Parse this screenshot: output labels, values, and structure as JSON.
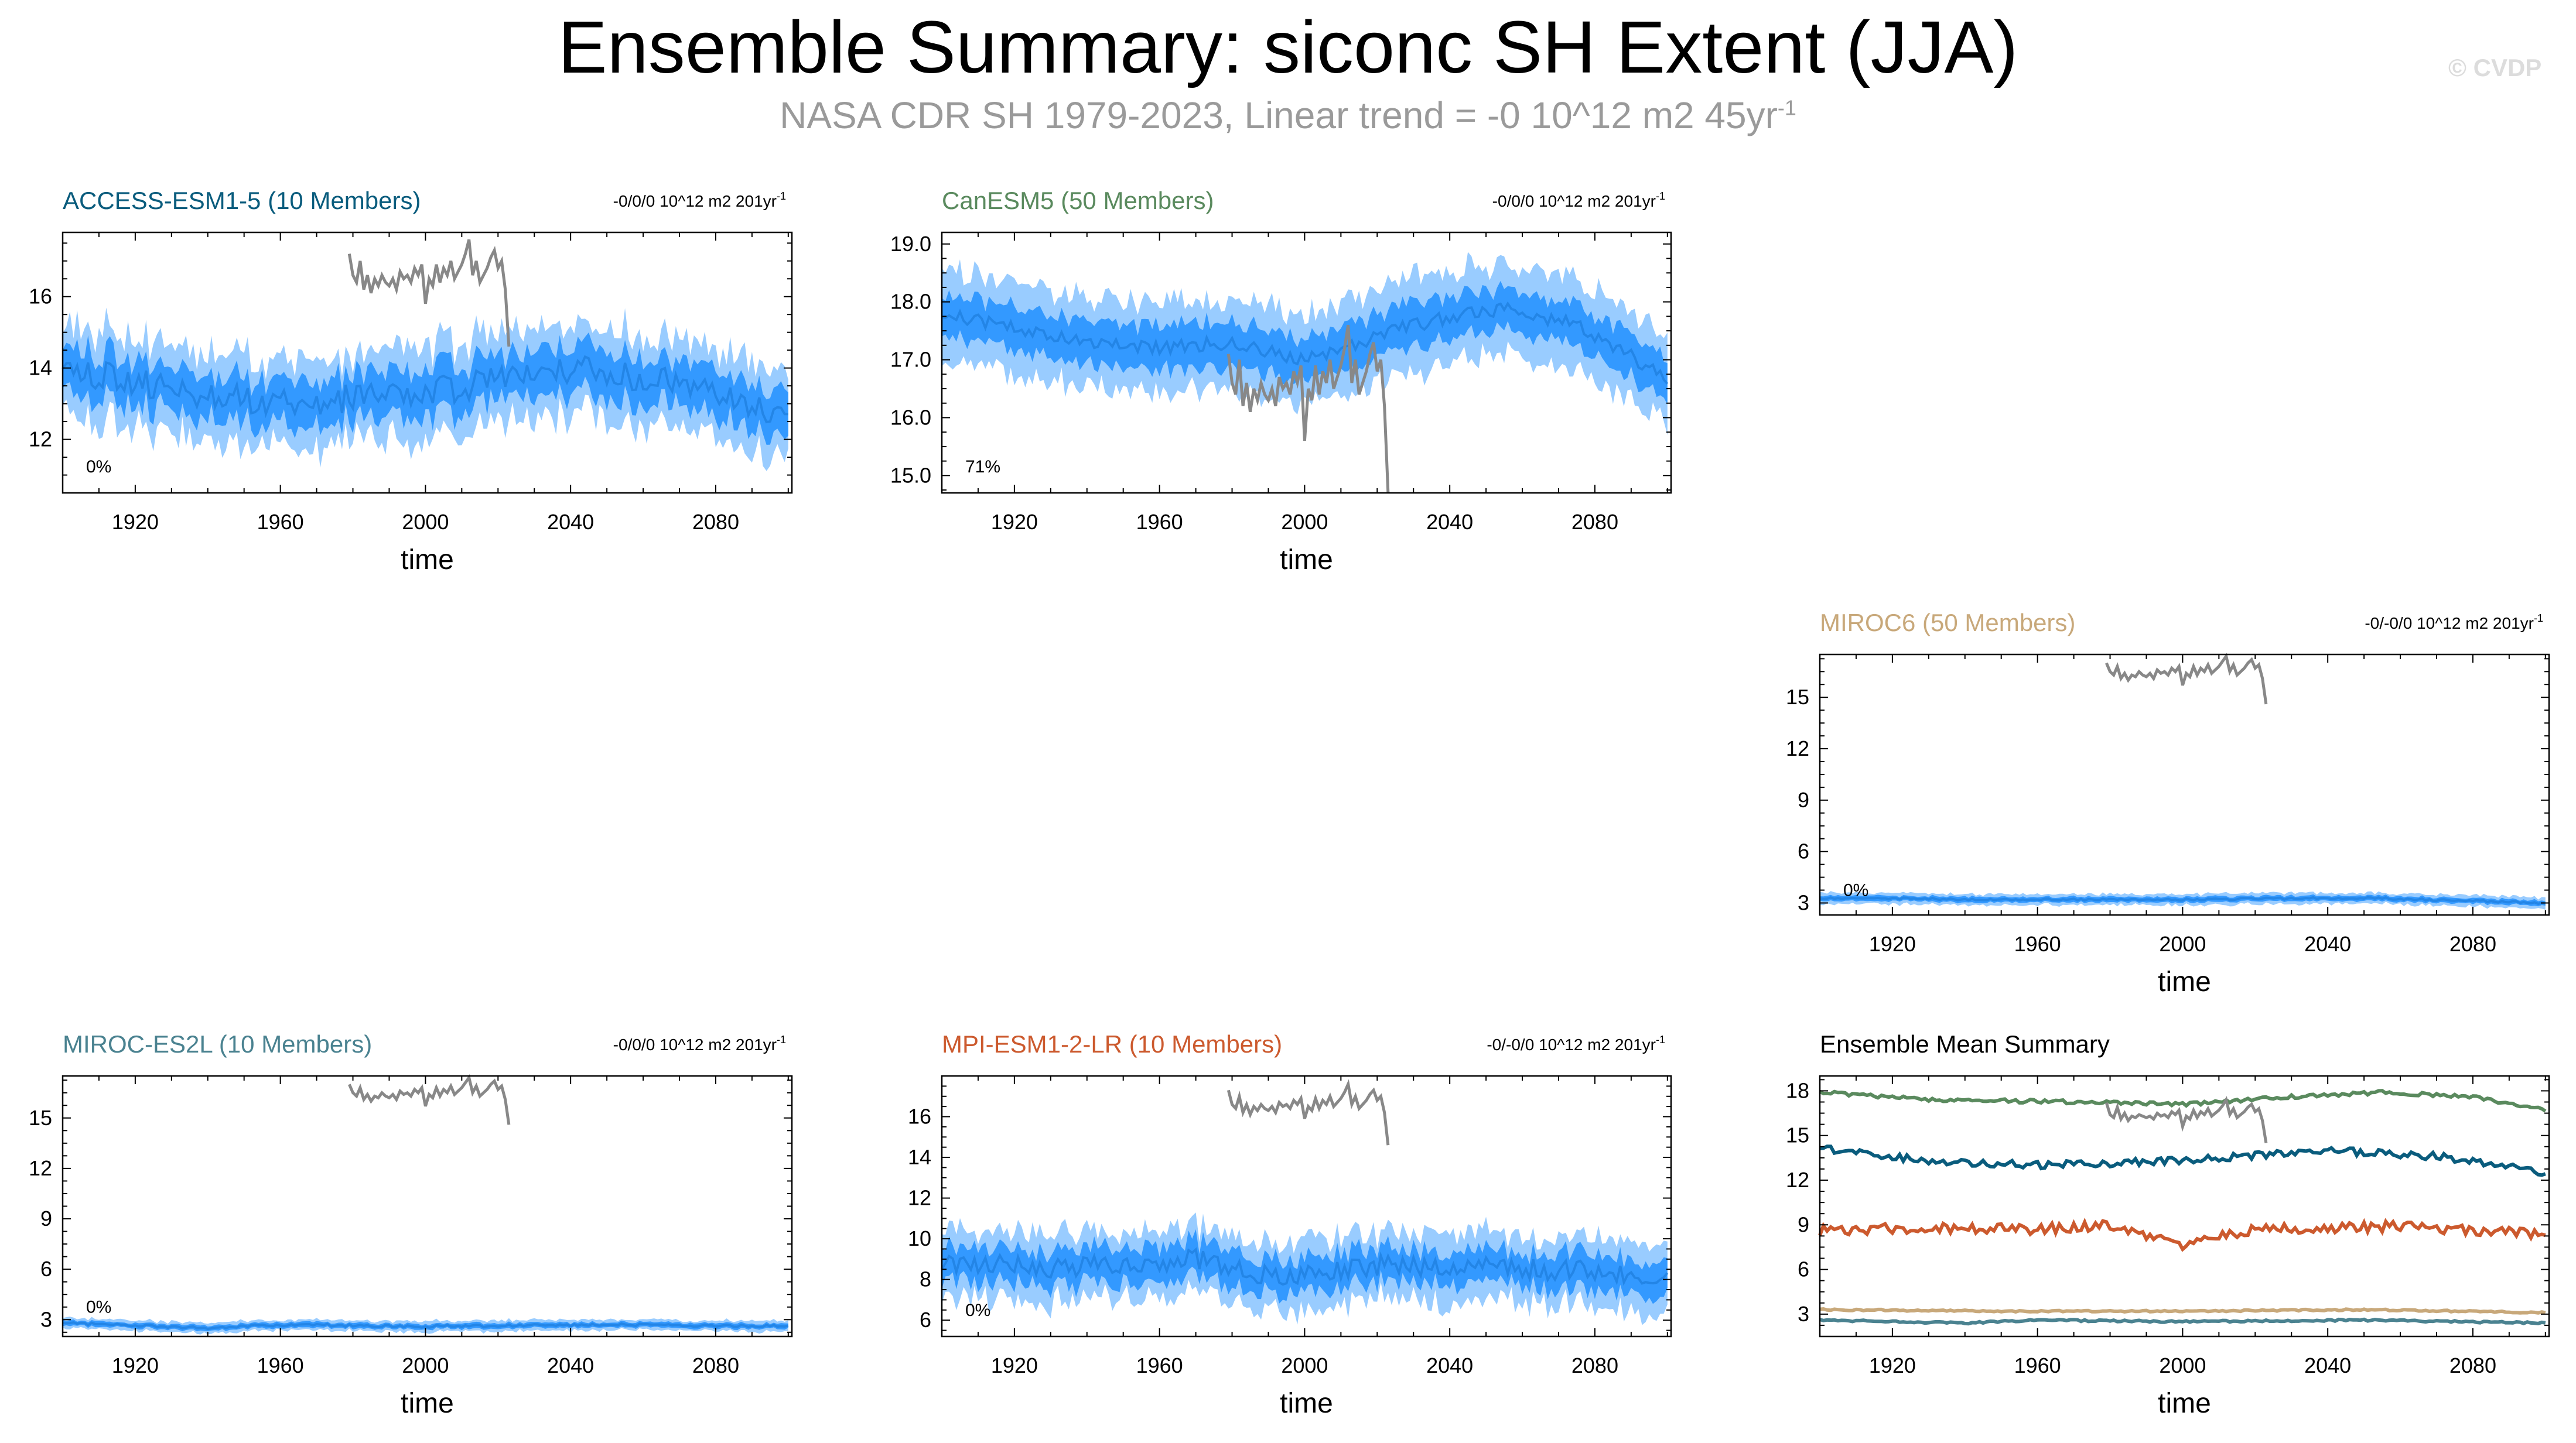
{
  "title": "Ensemble Summary: siconc SH Extent (JJA)",
  "subtitle_main": "NASA CDR SH 1979-2023, Linear trend = -0 10^12 m2 45yr",
  "subtitle_sup": "-1",
  "credit": "© CVDP",
  "colors": {
    "spread_light": "#99ccff",
    "spread_mid": "#3399ff",
    "mean_line": "#1f7fe0",
    "obs": "#888888",
    "ACCESS-ESM1-5": "#0a5c7d",
    "CanESM5": "#5a8a5e",
    "MIROC6": "#c8a87a",
    "MIROC-ES2L": "#4a8290",
    "MPI-ESM1-2-LR": "#cc5a2e"
  },
  "chart_data": [
    {
      "type": "area",
      "id": "access",
      "title": "ACCESS-ESM1-5 (10 Members)",
      "trend_label": "-0/0/0 10^12 m2 201yr",
      "trend_sup": "-1",
      "pct_label": "0%",
      "xlabel": "time",
      "xlim": [
        1900,
        2101
      ],
      "ylim": [
        10.5,
        17.8
      ],
      "xticks": [
        "1920",
        "1960",
        "2000",
        "2040",
        "2080"
      ],
      "yticks": [
        "12",
        "14",
        "16"
      ],
      "mean_profile": [
        [
          1900,
          14.0
        ],
        [
          1930,
          13.4
        ],
        [
          1960,
          13.0
        ],
        [
          2000,
          13.3
        ],
        [
          2040,
          14.0
        ],
        [
          2070,
          13.6
        ],
        [
          2100,
          12.6
        ]
      ],
      "noise": 0.4,
      "inner": 0.6,
      "outer": 1.2,
      "obs_years": [
        1979,
        2023
      ],
      "obs_values": [
        17.2,
        16.6,
        16.4,
        17.0,
        16.2,
        16.6,
        16.1,
        16.5,
        16.3,
        16.6,
        16.4,
        16.3,
        16.5,
        16.2,
        16.7,
        16.5,
        16.6,
        16.4,
        16.8,
        16.6,
        16.9,
        15.8,
        16.5,
        16.3,
        16.9,
        16.4,
        16.8,
        16.6,
        17.0,
        16.5,
        16.7,
        16.9,
        17.2,
        17.6,
        16.6,
        17.0,
        16.4,
        16.6,
        16.8,
        17.1,
        17.3,
        16.8,
        17.0,
        16.2,
        14.6
      ]
    },
    {
      "type": "area",
      "id": "canesm",
      "title": "CanESM5 (50 Members)",
      "trend_label": "-0/0/0 10^12 m2 201yr",
      "trend_sup": "-1",
      "pct_label": "71%",
      "xlabel": "time",
      "xlim": [
        1900,
        2101
      ],
      "ylim": [
        14.7,
        19.2
      ],
      "xticks": [
        "1920",
        "1960",
        "2000",
        "2040",
        "2080"
      ],
      "yticks": [
        "15.0",
        "16.0",
        "17.0",
        "18.0",
        "19.0"
      ],
      "mean_profile": [
        [
          1900,
          17.8
        ],
        [
          1930,
          17.4
        ],
        [
          1960,
          17.2
        ],
        [
          1980,
          17.3
        ],
        [
          2000,
          17.0
        ],
        [
          2030,
          17.6
        ],
        [
          2055,
          17.9
        ],
        [
          2075,
          17.6
        ],
        [
          2100,
          16.7
        ]
      ],
      "noise": 0.12,
      "inner": 0.35,
      "outer": 0.75,
      "obs_years": [
        1979,
        2023
      ],
      "obs_values": [
        17.1,
        16.6,
        16.4,
        17.0,
        16.2,
        16.6,
        16.1,
        16.5,
        16.3,
        16.6,
        16.4,
        16.3,
        16.5,
        16.2,
        16.7,
        16.5,
        16.6,
        16.4,
        16.8,
        16.6,
        16.9,
        15.6,
        16.5,
        16.3,
        16.9,
        16.4,
        16.8,
        16.6,
        17.0,
        16.5,
        16.7,
        16.9,
        17.2,
        17.6,
        16.6,
        17.0,
        16.4,
        16.6,
        16.8,
        17.1,
        17.3,
        16.8,
        17.0,
        16.2,
        14.7
      ]
    },
    {
      "type": "area",
      "id": "miroc6",
      "title": "MIROC6 (50 Members)",
      "trend_label": "-0/-0/0 10^12 m2 201yr",
      "trend_sup": "-1",
      "pct_label": "0%",
      "xlabel": "time",
      "xlim": [
        1900,
        2101
      ],
      "ylim": [
        2.3,
        17.5
      ],
      "xticks": [
        "1920",
        "1960",
        "2000",
        "2040",
        "2080"
      ],
      "yticks": [
        "3",
        "6",
        "9",
        "12",
        "15"
      ],
      "mean_profile": [
        [
          1900,
          3.3
        ],
        [
          1950,
          3.2
        ],
        [
          2000,
          3.2
        ],
        [
          2050,
          3.3
        ],
        [
          2100,
          3.0
        ]
      ],
      "noise": 0.06,
      "inner": 0.15,
      "outer": 0.3,
      "obs_years": [
        1979,
        2023
      ],
      "obs_values": [
        17.0,
        16.5,
        16.3,
        16.8,
        16.1,
        16.4,
        16.0,
        16.3,
        16.2,
        16.5,
        16.3,
        16.2,
        16.4,
        16.1,
        16.6,
        16.4,
        16.5,
        16.3,
        16.7,
        16.5,
        16.8,
        15.7,
        16.4,
        16.2,
        16.8,
        16.3,
        16.7,
        16.5,
        16.9,
        16.4,
        16.6,
        16.8,
        17.1,
        17.4,
        16.5,
        16.9,
        16.3,
        16.5,
        16.7,
        17.0,
        17.2,
        16.7,
        16.9,
        16.1,
        14.6
      ]
    },
    {
      "type": "area",
      "id": "mirocel",
      "title": "MIROC-ES2L (10 Members)",
      "trend_label": "-0/0/0 10^12 m2 201yr",
      "trend_sup": "-1",
      "pct_label": "0%",
      "xlabel": "time",
      "xlim": [
        1900,
        2101
      ],
      "ylim": [
        2.0,
        17.5
      ],
      "xticks": [
        "1920",
        "1960",
        "2000",
        "2040",
        "2080"
      ],
      "yticks": [
        "3",
        "6",
        "9",
        "12",
        "15"
      ],
      "mean_profile": [
        [
          1900,
          2.8
        ],
        [
          1940,
          2.5
        ],
        [
          1960,
          2.7
        ],
        [
          2000,
          2.6
        ],
        [
          2050,
          2.7
        ],
        [
          2100,
          2.6
        ]
      ],
      "noise": 0.08,
      "inner": 0.15,
      "outer": 0.3,
      "obs_years": [
        1979,
        2023
      ],
      "obs_values": [
        17.0,
        16.5,
        16.3,
        16.8,
        16.1,
        16.4,
        16.0,
        16.3,
        16.2,
        16.5,
        16.3,
        16.2,
        16.4,
        16.1,
        16.6,
        16.4,
        16.5,
        16.3,
        16.7,
        16.5,
        16.8,
        15.7,
        16.4,
        16.2,
        16.8,
        16.3,
        16.7,
        16.5,
        16.9,
        16.4,
        16.6,
        16.8,
        17.1,
        17.4,
        16.5,
        16.9,
        16.3,
        16.5,
        16.7,
        17.0,
        17.2,
        16.7,
        16.9,
        16.1,
        14.6
      ]
    },
    {
      "type": "area",
      "id": "mpi",
      "title": "MPI-ESM1-2-LR (10 Members)",
      "trend_label": "-0/-0/0 10^12 m2 201yr",
      "trend_sup": "-1",
      "pct_label": "0%",
      "xlabel": "time",
      "xlim": [
        1900,
        2101
      ],
      "ylim": [
        5.2,
        18.0
      ],
      "xticks": [
        "1920",
        "1960",
        "2000",
        "2040",
        "2080"
      ],
      "yticks": [
        "6",
        "8",
        "10",
        "12",
        "14",
        "16"
      ],
      "mean_profile": [
        [
          1900,
          8.8
        ],
        [
          1930,
          8.6
        ],
        [
          1950,
          8.7
        ],
        [
          1970,
          9.0
        ],
        [
          1995,
          8.0
        ],
        [
          2020,
          8.7
        ],
        [
          2050,
          8.6
        ],
        [
          2080,
          8.4
        ],
        [
          2100,
          8.2
        ]
      ],
      "noise": 0.5,
      "inner": 0.8,
      "outer": 1.6,
      "obs_years": [
        1979,
        2023
      ],
      "obs_values": [
        17.3,
        16.6,
        16.4,
        17.0,
        16.2,
        16.6,
        16.1,
        16.5,
        16.3,
        16.6,
        16.4,
        16.3,
        16.5,
        16.2,
        16.7,
        16.5,
        16.6,
        16.4,
        16.8,
        16.6,
        16.9,
        15.9,
        16.5,
        16.3,
        16.9,
        16.4,
        16.8,
        16.6,
        17.0,
        16.5,
        16.7,
        16.9,
        17.2,
        17.6,
        16.6,
        17.0,
        16.4,
        16.6,
        16.8,
        17.1,
        17.3,
        16.8,
        17.0,
        16.2,
        14.6
      ]
    },
    {
      "type": "line",
      "id": "summary",
      "title": "Ensemble Mean Summary",
      "xlabel": "time",
      "xlim": [
        1900,
        2101
      ],
      "ylim": [
        1.5,
        19.0
      ],
      "xticks": [
        "1920",
        "1960",
        "2000",
        "2040",
        "2080"
      ],
      "yticks": [
        "3",
        "6",
        "9",
        "12",
        "15",
        "18"
      ],
      "series": [
        {
          "name": "CanESM5",
          "profile": [
            [
              1900,
              17.9
            ],
            [
              1930,
              17.4
            ],
            [
              1960,
              17.3
            ],
            [
              2000,
              17.1
            ],
            [
              2030,
              17.6
            ],
            [
              2055,
              17.9
            ],
            [
              2080,
              17.6
            ],
            [
              2100,
              16.7
            ]
          ],
          "noise": 0.12
        },
        {
          "name": "ACCESS-ESM1-5",
          "profile": [
            [
              1900,
              14.1
            ],
            [
              1930,
              13.3
            ],
            [
              1960,
              13.0
            ],
            [
              2000,
              13.3
            ],
            [
              2040,
              14.0
            ],
            [
              2070,
              13.6
            ],
            [
              2100,
              12.5
            ]
          ],
          "noise": 0.25
        },
        {
          "name": "MPI-ESM1-2-LR",
          "profile": [
            [
              1900,
              8.6
            ],
            [
              1930,
              8.8
            ],
            [
              1960,
              8.7
            ],
            [
              1980,
              9.0
            ],
            [
              2000,
              7.7
            ],
            [
              2020,
              8.7
            ],
            [
              2060,
              8.9
            ],
            [
              2100,
              8.4
            ]
          ],
          "noise": 0.35
        },
        {
          "name": "MIROC6",
          "profile": [
            [
              1900,
              3.3
            ],
            [
              1950,
              3.2
            ],
            [
              2000,
              3.2
            ],
            [
              2050,
              3.3
            ],
            [
              2100,
              3.1
            ]
          ],
          "noise": 0.05
        },
        {
          "name": "MIROC-ES2L",
          "profile": [
            [
              1900,
              2.6
            ],
            [
              1940,
              2.4
            ],
            [
              1960,
              2.6
            ],
            [
              2000,
              2.5
            ],
            [
              2050,
              2.6
            ],
            [
              2100,
              2.4
            ]
          ],
          "noise": 0.06
        }
      ],
      "obs_years": [
        1979,
        2023
      ],
      "obs_values": [
        17.2,
        16.4,
        16.2,
        16.9,
        16.1,
        16.5,
        16.0,
        16.3,
        16.2,
        16.4,
        16.3,
        16.2,
        16.3,
        16.1,
        16.5,
        16.3,
        16.4,
        16.2,
        16.6,
        16.4,
        16.7,
        15.6,
        16.3,
        16.1,
        16.7,
        16.2,
        16.6,
        16.4,
        16.8,
        16.3,
        16.5,
        16.7,
        17.0,
        17.4,
        16.4,
        16.8,
        16.2,
        16.4,
        16.6,
        16.9,
        17.1,
        16.6,
        16.8,
        16.0,
        14.5
      ]
    }
  ]
}
